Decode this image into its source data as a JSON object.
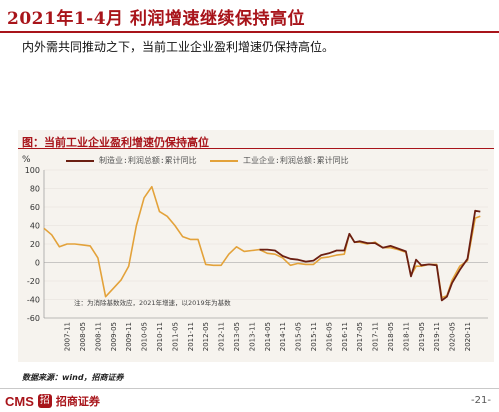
{
  "header": {
    "title": "2021年1-4月 利润增速继续保持高位",
    "subtitle": "内外需共同推动之下，当前工业企业盈利增速仍保持高位。"
  },
  "chart_header": {
    "title": "图：当前工业企业盈利增速仍保持高位",
    "unit": "%"
  },
  "legend": {
    "series1": "制造业:利润总额:累计同比",
    "series2": "工业企业:利润总额:累计同比"
  },
  "annotation": "注：为消除基数效应，2021年增速，以2019年为基数",
  "source": "数据来源：wind，招商证券",
  "footer": {
    "brand": "CMS",
    "logo_char": "招",
    "name": "招商证券",
    "page": "-21-"
  },
  "colors": {
    "manufacturing": "#6b1f12",
    "industrial": "#e3a23a",
    "accent": "#a8141a"
  },
  "chart_data": {
    "type": "line",
    "ylim": [
      -60,
      100
    ],
    "yticks": [
      -60,
      -40,
      -20,
      0,
      20,
      40,
      60,
      80,
      100
    ],
    "xticks": [
      "2007-11",
      "2008-05",
      "2008-11",
      "2009-05",
      "2009-11",
      "2010-05",
      "2010-11",
      "2011-05",
      "2011-11",
      "2012-05",
      "2012-11",
      "2013-05",
      "2013-11",
      "2014-05",
      "2014-11",
      "2015-05",
      "2015-11",
      "2016-05",
      "2016-11",
      "2017-05",
      "2017-11",
      "2018-05",
      "2018-11",
      "2019-05",
      "2019-11",
      "2020-05",
      "2020-11"
    ],
    "series": [
      {
        "name": "制造业:利润总额:累计同比",
        "color": "#6b1f12",
        "points": [
          [
            "2014-02",
            14
          ],
          [
            "2014-05",
            14
          ],
          [
            "2014-08",
            13
          ],
          [
            "2014-11",
            7
          ],
          [
            "2015-02",
            4
          ],
          [
            "2015-05",
            3
          ],
          [
            "2015-08",
            1
          ],
          [
            "2015-11",
            2
          ],
          [
            "2016-02",
            8
          ],
          [
            "2016-05",
            10
          ],
          [
            "2016-08",
            13
          ],
          [
            "2016-11",
            13
          ],
          [
            "2017-01",
            31
          ],
          [
            "2017-03",
            22
          ],
          [
            "2017-05",
            23
          ],
          [
            "2017-08",
            21
          ],
          [
            "2017-11",
            21
          ],
          [
            "2018-02",
            16
          ],
          [
            "2018-05",
            18
          ],
          [
            "2018-08",
            15
          ],
          [
            "2018-11",
            12
          ],
          [
            "2019-01",
            -15
          ],
          [
            "2019-03",
            3
          ],
          [
            "2019-05",
            -3
          ],
          [
            "2019-08",
            -2
          ],
          [
            "2019-11",
            -3
          ],
          [
            "2020-01",
            -41
          ],
          [
            "2020-03",
            -37
          ],
          [
            "2020-05",
            -22
          ],
          [
            "2020-08",
            -8
          ],
          [
            "2020-11",
            4
          ],
          [
            "2021-02",
            56
          ],
          [
            "2021-04",
            55
          ]
        ]
      },
      {
        "name": "工业企业:利润总额:累计同比",
        "color": "#e3a23a",
        "points": [
          [
            "2007-02",
            37
          ],
          [
            "2007-05",
            30
          ],
          [
            "2007-08",
            17
          ],
          [
            "2007-11",
            20
          ],
          [
            "2008-02",
            20
          ],
          [
            "2008-05",
            19
          ],
          [
            "2008-08",
            18
          ],
          [
            "2008-11",
            5
          ],
          [
            "2009-02",
            -37
          ],
          [
            "2009-05",
            -28
          ],
          [
            "2009-08",
            -19
          ],
          [
            "2009-11",
            -4
          ],
          [
            "2010-02",
            40
          ],
          [
            "2010-05",
            70
          ],
          [
            "2010-08",
            82
          ],
          [
            "2010-11",
            55
          ],
          [
            "2011-02",
            50
          ],
          [
            "2011-05",
            40
          ],
          [
            "2011-08",
            28
          ],
          [
            "2011-11",
            25
          ],
          [
            "2012-02",
            25
          ],
          [
            "2012-05",
            -2
          ],
          [
            "2012-08",
            -3
          ],
          [
            "2012-11",
            -3
          ],
          [
            "2013-02",
            9
          ],
          [
            "2013-05",
            17
          ],
          [
            "2013-08",
            12
          ],
          [
            "2013-11",
            13
          ],
          [
            "2014-02",
            14
          ],
          [
            "2014-05",
            10
          ],
          [
            "2014-08",
            9
          ],
          [
            "2014-11",
            5
          ],
          [
            "2015-02",
            -3
          ],
          [
            "2015-05",
            -1
          ],
          [
            "2015-08",
            -2
          ],
          [
            "2015-11",
            -2
          ],
          [
            "2016-02",
            5
          ],
          [
            "2016-05",
            6
          ],
          [
            "2016-08",
            8
          ],
          [
            "2016-11",
            9
          ],
          [
            "2017-01",
            31
          ],
          [
            "2017-03",
            22
          ],
          [
            "2017-05",
            22
          ],
          [
            "2017-08",
            20
          ],
          [
            "2017-11",
            22
          ],
          [
            "2018-02",
            16
          ],
          [
            "2018-05",
            16
          ],
          [
            "2018-08",
            14
          ],
          [
            "2018-11",
            11
          ],
          [
            "2019-01",
            -14
          ],
          [
            "2019-03",
            -4
          ],
          [
            "2019-05",
            -4
          ],
          [
            "2019-08",
            -2
          ],
          [
            "2019-11",
            -2
          ],
          [
            "2020-01",
            -38
          ],
          [
            "2020-03",
            -36
          ],
          [
            "2020-05",
            -19
          ],
          [
            "2020-08",
            -4
          ],
          [
            "2020-11",
            2
          ],
          [
            "2021-02",
            48
          ],
          [
            "2021-04",
            50
          ]
        ]
      }
    ]
  }
}
